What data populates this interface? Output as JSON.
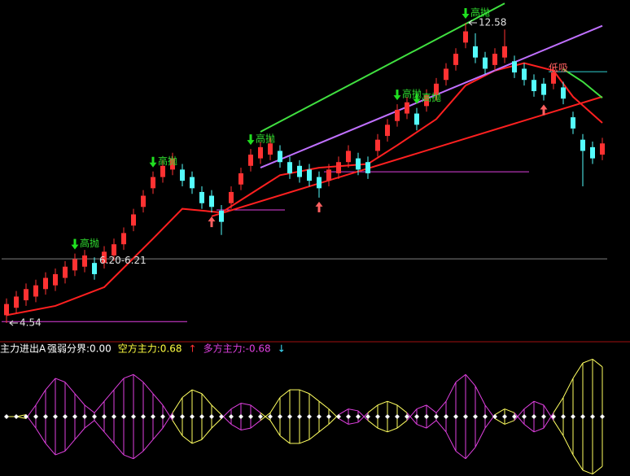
{
  "chart_data": {
    "type": "candlestick",
    "ylim": [
      4.04,
      13.19
    ],
    "candles": [
      [
        4.75,
        5.2,
        4.54,
        5.05
      ],
      [
        4.95,
        5.4,
        4.8,
        5.25
      ],
      [
        5.15,
        5.6,
        5.0,
        5.45
      ],
      [
        5.25,
        5.7,
        5.1,
        5.55
      ],
      [
        5.45,
        5.9,
        5.3,
        5.75
      ],
      [
        5.55,
        6.0,
        5.4,
        5.85
      ],
      [
        5.75,
        6.2,
        5.6,
        6.05
      ],
      [
        5.95,
        6.4,
        5.8,
        6.25
      ],
      [
        6.05,
        6.5,
        5.9,
        6.35
      ],
      [
        6.15,
        6.3,
        5.7,
        5.85
      ],
      [
        6.15,
        6.6,
        6.0,
        6.45
      ],
      [
        6.35,
        6.8,
        6.2,
        6.65
      ],
      [
        6.65,
        7.1,
        6.5,
        6.95
      ],
      [
        7.15,
        7.6,
        7.0,
        7.45
      ],
      [
        7.65,
        8.1,
        7.5,
        7.95
      ],
      [
        8.15,
        8.6,
        8.0,
        8.45
      ],
      [
        8.45,
        8.9,
        8.3,
        8.75
      ],
      [
        8.65,
        9.1,
        8.5,
        8.95
      ],
      [
        8.65,
        8.8,
        8.2,
        8.35
      ],
      [
        8.45,
        8.6,
        8.0,
        8.15
      ],
      [
        8.05,
        8.2,
        7.6,
        7.75
      ],
      [
        7.95,
        8.1,
        7.5,
        7.65
      ],
      [
        7.55,
        7.7,
        6.9,
        7.25
      ],
      [
        7.75,
        8.2,
        7.6,
        8.05
      ],
      [
        8.25,
        8.7,
        8.1,
        8.55
      ],
      [
        8.75,
        9.2,
        8.6,
        9.05
      ],
      [
        8.95,
        9.4,
        8.8,
        9.25
      ],
      [
        9.05,
        9.5,
        8.9,
        9.35
      ],
      [
        9.15,
        9.3,
        8.7,
        8.85
      ],
      [
        8.85,
        9.0,
        8.4,
        8.55
      ],
      [
        8.75,
        8.9,
        8.3,
        8.45
      ],
      [
        8.65,
        8.8,
        8.2,
        8.35
      ],
      [
        8.45,
        8.6,
        7.9,
        8.15
      ],
      [
        8.35,
        8.8,
        8.2,
        8.65
      ],
      [
        8.55,
        9.0,
        8.4,
        8.85
      ],
      [
        8.85,
        9.3,
        8.7,
        9.15
      ],
      [
        8.95,
        9.1,
        8.5,
        8.65
      ],
      [
        8.85,
        9.0,
        8.4,
        8.55
      ],
      [
        9.15,
        9.6,
        9.0,
        9.45
      ],
      [
        9.55,
        10.0,
        9.4,
        9.85
      ],
      [
        9.95,
        10.4,
        9.8,
        10.25
      ],
      [
        10.15,
        10.6,
        10.0,
        10.45
      ],
      [
        10.15,
        10.3,
        9.7,
        9.85
      ],
      [
        10.35,
        10.8,
        10.2,
        10.65
      ],
      [
        10.65,
        11.1,
        10.5,
        10.95
      ],
      [
        11.05,
        11.5,
        10.9,
        11.35
      ],
      [
        11.45,
        11.9,
        11.3,
        11.75
      ],
      [
        12.05,
        12.58,
        11.9,
        12.35
      ],
      [
        11.95,
        12.3,
        11.5,
        11.65
      ],
      [
        11.65,
        11.8,
        11.2,
        11.35
      ],
      [
        11.45,
        11.9,
        11.3,
        11.75
      ],
      [
        11.65,
        12.4,
        11.5,
        11.95
      ],
      [
        11.55,
        11.7,
        11.1,
        11.25
      ],
      [
        11.35,
        11.5,
        10.9,
        11.05
      ],
      [
        11.05,
        11.2,
        10.6,
        10.75
      ],
      [
        10.95,
        11.1,
        10.5,
        10.65
      ],
      [
        10.95,
        11.4,
        10.8,
        11.25
      ],
      [
        10.85,
        11.0,
        10.4,
        10.55
      ],
      [
        10.05,
        10.2,
        9.6,
        9.75
      ],
      [
        9.45,
        9.6,
        8.2,
        9.15
      ],
      [
        9.25,
        9.4,
        8.8,
        8.95
      ],
      [
        9.05,
        9.5,
        8.9,
        9.35
      ]
    ],
    "up_color": "#ff3232",
    "down_color": "#54fcfc",
    "lines": [
      {
        "color": "#ff2020",
        "x": [
          0,
          5,
          10,
          15,
          18,
          22,
          25,
          28,
          32,
          37,
          40,
          44,
          47,
          50,
          53,
          56,
          58,
          61
        ],
        "values": [
          4.75,
          5.0,
          5.5,
          6.8,
          7.6,
          7.5,
          8.0,
          8.5,
          8.7,
          8.8,
          9.3,
          10.0,
          10.9,
          11.3,
          11.5,
          11.3,
          10.6,
          9.9
        ]
      },
      {
        "color": "#ff2020",
        "x": [
          21,
          61
        ],
        "values": [
          7.4,
          10.6
        ]
      },
      {
        "color": "#c070ff",
        "x": [
          26,
          61
        ],
        "values": [
          8.7,
          12.5
        ]
      },
      {
        "color": "#40e040",
        "x": [
          26,
          51
        ],
        "values": [
          9.66,
          13.1
        ]
      },
      {
        "color": "#40e040",
        "x": [
          57,
          59,
          61
        ],
        "values": [
          11.34,
          11.0,
          10.57
        ]
      }
    ],
    "hlines": [
      {
        "value": 4.58,
        "from": 0,
        "to": 18,
        "color": "#e040e0"
      },
      {
        "value": 7.57,
        "from": 22,
        "to": 28,
        "color": "#e040e0"
      },
      {
        "value": 8.59,
        "from": 33,
        "to": 53,
        "color": "#e040e0"
      },
      {
        "value": 11.27,
        "from": 56,
        "to": 61,
        "color": "#30d0d0"
      },
      {
        "value": 6.26,
        "from": 0,
        "to": 61,
        "color": "#808080"
      }
    ],
    "price_labels": [
      {
        "value": 12.58,
        "index": 47
      },
      {
        "value": 4.54,
        "index": 0
      }
    ],
    "sell_signals": [
      7,
      15,
      25,
      40,
      42,
      47
    ],
    "buy_signals": [
      21,
      32,
      55
    ],
    "annotations": [
      {
        "text": "高抛",
        "index": 7
      },
      {
        "text": "高抛",
        "index": 15
      },
      {
        "text": "高抛",
        "index": 25
      },
      {
        "text": "高抛",
        "index": 40
      },
      {
        "text": "高抛",
        "index": 42
      },
      {
        "text": "高抛",
        "index": 47
      },
      {
        "text": "低吸",
        "index": 55
      },
      {
        "text": "6.20-6.21",
        "index": 9
      }
    ],
    "indicator": {
      "type": "mirror",
      "name": "主力进出A",
      "texts": [
        {
          "text": "强弱分界:0.00",
          "color": "#ffffff"
        },
        {
          "text": "空方主力:0.68",
          "color": "#ffff40"
        },
        {
          "text": "↑",
          "color": "#ff3030"
        },
        {
          "text": "多方主力:-0.68",
          "color": "#e040e0"
        },
        {
          "text": "↓",
          "color": "#40e0ff"
        }
      ],
      "ylim": [
        -1.53,
        1.53
      ],
      "pos_color": "#ffff60",
      "neg_color": "#e040e0",
      "values": [
        0,
        0,
        0.05,
        -0.3,
        -0.7,
        -1.0,
        -0.9,
        -0.6,
        -0.3,
        -0.1,
        -0.4,
        -0.7,
        -1.0,
        -1.1,
        -0.9,
        -0.6,
        -0.3,
        0.1,
        0.5,
        0.7,
        0.6,
        0.3,
        0.05,
        -0.2,
        -0.35,
        -0.3,
        -0.1,
        0.1,
        0.5,
        0.7,
        0.7,
        0.6,
        0.4,
        0.2,
        -0.05,
        -0.2,
        -0.15,
        0.1,
        0.3,
        0.4,
        0.3,
        0.1,
        -0.2,
        -0.3,
        -0.1,
        -0.4,
        -0.9,
        -1.1,
        -0.8,
        -0.3,
        0.05,
        0.2,
        0.1,
        -0.2,
        -0.4,
        -0.3,
        0.1,
        0.5,
        1.0,
        1.4,
        1.5,
        1.3
      ]
    }
  }
}
